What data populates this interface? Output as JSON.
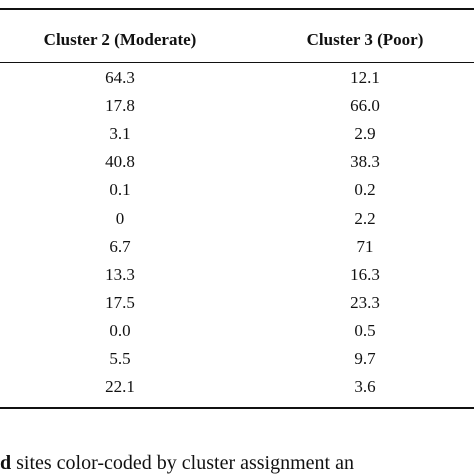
{
  "table": {
    "header": [
      "Cluster 2 (Moderate)",
      "Cluster 3 (Poor)"
    ],
    "rows": [
      [
        "64.3",
        "12.1"
      ],
      [
        "17.8",
        "66.0"
      ],
      [
        "3.1",
        "2.9"
      ],
      [
        "40.8",
        "38.3"
      ],
      [
        "0.1",
        "0.2"
      ],
      [
        "0",
        "2.2"
      ],
      [
        "6.7",
        "71"
      ],
      [
        "13.3",
        "16.3"
      ],
      [
        "17.5",
        "23.3"
      ],
      [
        "0.0",
        "0.5"
      ],
      [
        "5.5",
        "9.7"
      ],
      [
        "22.1",
        "3.6"
      ]
    ]
  },
  "caption": {
    "lead": "d",
    "text": " sites color-coded by cluster assignment an"
  }
}
